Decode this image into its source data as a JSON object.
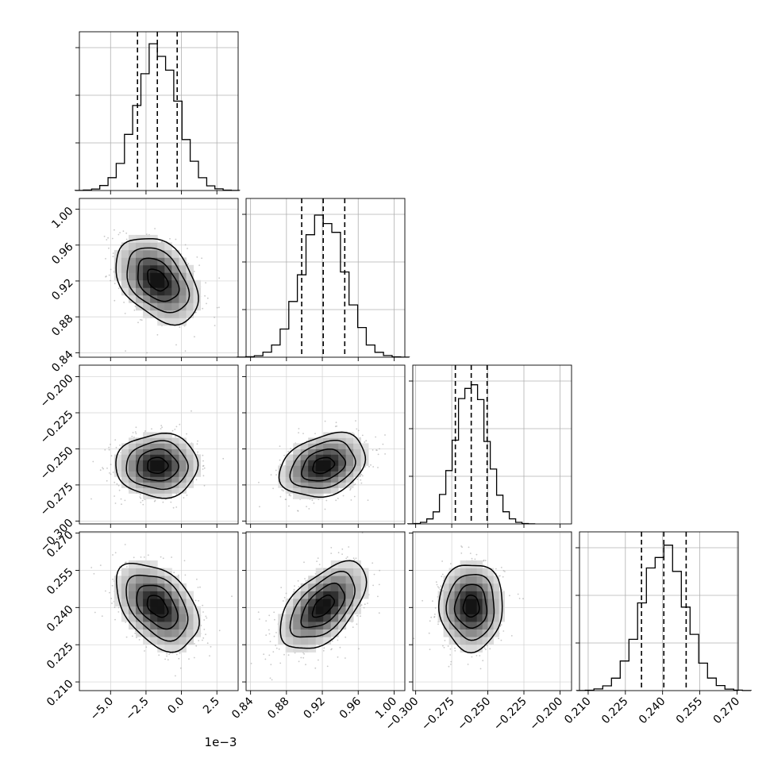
{
  "chart_data": {
    "type": "corner",
    "grid": true,
    "offset_label": "1e−3",
    "parameters": [
      {
        "range": [
          -7.2,
          4.0
        ],
        "ticks": [
          -5.0,
          -2.5,
          0.0,
          2.5
        ],
        "tick_labels": [
          "−5.0",
          "−2.5",
          "0.0",
          "2.5"
        ],
        "mean": -1.7,
        "sd": 1.45,
        "quantiles": [
          -3.1,
          -1.7,
          -0.3
        ]
      },
      {
        "range": [
          0.835,
          1.012
        ],
        "ticks": [
          0.84,
          0.88,
          0.92,
          0.96,
          1.0
        ],
        "tick_labels": [
          "0.84",
          "0.88",
          "0.92",
          "0.96",
          "1.00"
        ],
        "mean": 0.921,
        "sd": 0.024,
        "quantiles": [
          0.897,
          0.921,
          0.945
        ]
      },
      {
        "range": [
          -0.302,
          -0.192
        ],
        "ticks": [
          -0.3,
          -0.275,
          -0.25,
          -0.225,
          -0.2
        ],
        "tick_labels": [
          "−0.300",
          "−0.275",
          "−0.250",
          "−0.225",
          "−0.200"
        ],
        "mean": -0.2615,
        "sd": 0.011,
        "quantiles": [
          -0.2725,
          -0.2615,
          -0.2505
        ]
      },
      {
        "range": [
          0.2065,
          0.2705
        ],
        "ticks": [
          0.21,
          0.225,
          0.24,
          0.255,
          0.27
        ],
        "tick_labels": [
          "0.210",
          "0.225",
          "0.240",
          "0.255",
          "0.270"
        ],
        "mean": 0.2405,
        "sd": 0.0088,
        "quantiles": [
          0.2315,
          0.2405,
          0.2495
        ]
      }
    ],
    "correlations": [
      {
        "row": 1,
        "col": 0,
        "rho": -0.38
      },
      {
        "row": 2,
        "col": 0,
        "rho": 0.0
      },
      {
        "row": 2,
        "col": 1,
        "rho": 0.28
      },
      {
        "row": 3,
        "col": 0,
        "rho": -0.42
      },
      {
        "row": 3,
        "col": 1,
        "rho": 0.55
      },
      {
        "row": 3,
        "col": 2,
        "rho": 0.0
      }
    ],
    "histogram_bins": 20
  }
}
